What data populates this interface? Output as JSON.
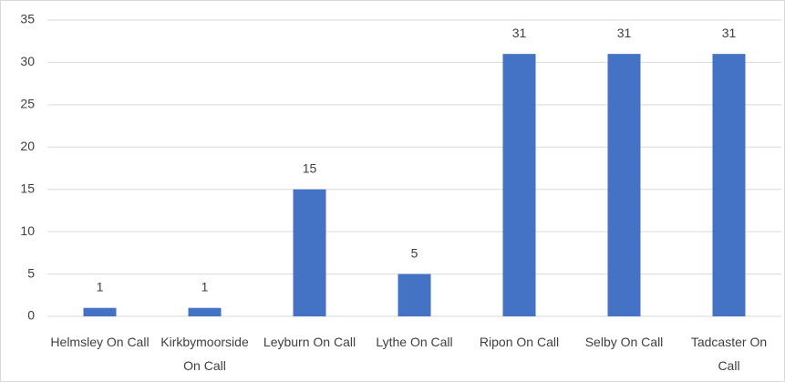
{
  "chart_data": {
    "type": "bar",
    "categories": [
      "Helmsley On Call",
      "Kirkbymoorside On Call",
      "Leyburn On Call",
      "Lythe On Call",
      "Ripon On Call",
      "Selby On Call",
      "Tadcaster On Call"
    ],
    "values": [
      1,
      1,
      15,
      5,
      31,
      31,
      31
    ],
    "color": "#4472c4",
    "ylim": [
      0,
      35
    ],
    "yticks": [
      0,
      5,
      10,
      15,
      20,
      25,
      30,
      35
    ],
    "grid": true
  }
}
